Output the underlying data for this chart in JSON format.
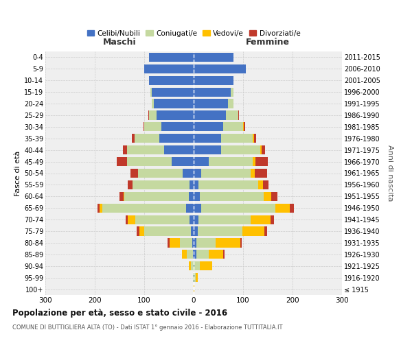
{
  "age_groups": [
    "0-4",
    "5-9",
    "10-14",
    "15-19",
    "20-24",
    "25-29",
    "30-34",
    "35-39",
    "40-44",
    "45-49",
    "50-54",
    "55-59",
    "60-64",
    "65-69",
    "70-74",
    "75-79",
    "80-84",
    "85-89",
    "90-94",
    "95-99",
    "100+"
  ],
  "birth_years": [
    "2011-2015",
    "2006-2010",
    "2001-2005",
    "1996-2000",
    "1991-1995",
    "1986-1990",
    "1981-1985",
    "1976-1980",
    "1971-1975",
    "1966-1970",
    "1961-1965",
    "1956-1960",
    "1951-1955",
    "1946-1950",
    "1941-1945",
    "1936-1940",
    "1931-1935",
    "1926-1930",
    "1921-1925",
    "1916-1920",
    "≤ 1915"
  ],
  "males": {
    "celibe": [
      90,
      100,
      90,
      85,
      80,
      75,
      65,
      70,
      60,
      45,
      22,
      8,
      10,
      15,
      8,
      5,
      3,
      2,
      0,
      0,
      0
    ],
    "coniugato": [
      0,
      0,
      0,
      2,
      5,
      15,
      35,
      50,
      75,
      90,
      90,
      115,
      130,
      170,
      110,
      95,
      25,
      12,
      5,
      1,
      0
    ],
    "vedovo": [
      0,
      0,
      0,
      0,
      0,
      0,
      0,
      0,
      0,
      0,
      1,
      1,
      2,
      5,
      15,
      10,
      20,
      10,
      5,
      0,
      0
    ],
    "divorziato": [
      0,
      0,
      0,
      0,
      0,
      1,
      2,
      5,
      8,
      20,
      15,
      10,
      8,
      5,
      5,
      5,
      5,
      0,
      0,
      0,
      0
    ]
  },
  "females": {
    "nubile": [
      80,
      105,
      80,
      75,
      70,
      65,
      60,
      55,
      55,
      30,
      15,
      10,
      12,
      15,
      10,
      8,
      5,
      5,
      2,
      2,
      0
    ],
    "coniugata": [
      0,
      0,
      0,
      5,
      10,
      25,
      40,
      65,
      80,
      90,
      100,
      120,
      130,
      150,
      105,
      90,
      40,
      25,
      10,
      2,
      0
    ],
    "vedova": [
      0,
      0,
      0,
      0,
      0,
      0,
      1,
      2,
      2,
      5,
      8,
      10,
      15,
      30,
      40,
      45,
      50,
      30,
      25,
      5,
      1
    ],
    "divorziata": [
      0,
      0,
      0,
      0,
      0,
      2,
      3,
      5,
      8,
      25,
      25,
      12,
      12,
      8,
      8,
      5,
      2,
      2,
      0,
      0,
      0
    ]
  },
  "colors": {
    "celibe": "#4472c4",
    "coniugato": "#c5d9a0",
    "vedovo": "#ffc000",
    "divorziato": "#c0392b"
  },
  "xlim": 300,
  "title": "Popolazione per età, sesso e stato civile - 2016",
  "subtitle": "COMUNE DI BUTTIGLIERA ALTA (TO) - Dati ISTAT 1° gennaio 2016 - Elaborazione TUTTITALIA.IT",
  "ylabel_left": "Fasce di età",
  "ylabel_right": "Anni di nascita",
  "xlabel_left": "Maschi",
  "xlabel_right": "Femmine",
  "legend_labels": [
    "Celibi/Nubili",
    "Coniugati/e",
    "Vedovi/e",
    "Divorziati/e"
  ],
  "bg_color": "#efefef",
  "grid_color": "#cccccc"
}
